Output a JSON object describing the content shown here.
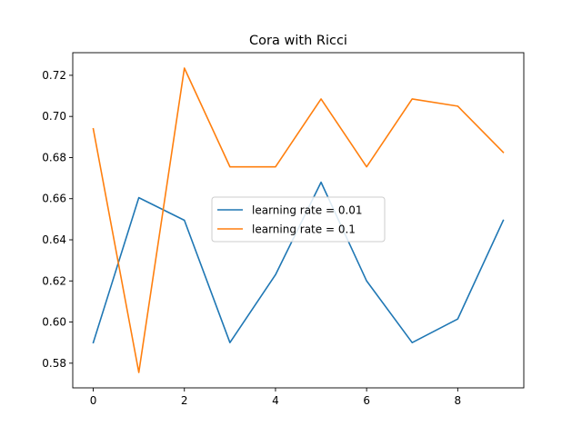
{
  "chart_data": {
    "type": "line",
    "title": "Cora with Ricci",
    "xlabel": "",
    "ylabel": "",
    "x": [
      0,
      1,
      2,
      3,
      4,
      5,
      6,
      7,
      8,
      9
    ],
    "xlim": [
      -0.45,
      9.45
    ],
    "ylim": [
      0.568,
      0.731
    ],
    "xticks": [
      0,
      2,
      4,
      6,
      8
    ],
    "yticks": [
      0.58,
      0.6,
      0.62,
      0.64,
      0.66,
      0.68,
      0.7,
      0.72
    ],
    "grid": false,
    "legend_position": "center",
    "series": [
      {
        "name": "learning rate = 0.01",
        "color": "#1f77b4",
        "values": [
          0.59,
          0.6605,
          0.6495,
          0.59,
          0.623,
          0.668,
          0.62,
          0.59,
          0.6015,
          0.6495
        ]
      },
      {
        "name": "learning rate = 0.1",
        "color": "#ff7f0e",
        "values": [
          0.694,
          0.5755,
          0.7235,
          0.6755,
          0.6755,
          0.7085,
          0.6755,
          0.7085,
          0.705,
          0.6825
        ]
      }
    ]
  }
}
